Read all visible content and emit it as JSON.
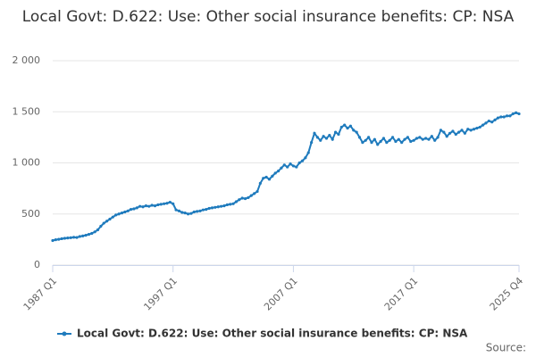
{
  "chart_data": {
    "type": "line",
    "title": "Local Govt: D.622: Use: Other social insurance benefits: CP: NSA",
    "source": "Source:",
    "categories": [
      "1987 Q1",
      null,
      null,
      null,
      null,
      null,
      null,
      null,
      null,
      null,
      null,
      null,
      null,
      null,
      null,
      null,
      null,
      null,
      null,
      null,
      null,
      null,
      null,
      null,
      null,
      null,
      null,
      null,
      null,
      null,
      null,
      null,
      null,
      null,
      null,
      null,
      null,
      null,
      null,
      null,
      "1997 Q1",
      null,
      null,
      null,
      null,
      null,
      null,
      null,
      null,
      null,
      null,
      null,
      null,
      null,
      null,
      null,
      null,
      null,
      null,
      null,
      null,
      null,
      null,
      null,
      null,
      null,
      null,
      null,
      null,
      null,
      null,
      null,
      null,
      null,
      null,
      null,
      null,
      null,
      null,
      null,
      "2007 Q1",
      null,
      null,
      null,
      null,
      null,
      null,
      null,
      null,
      null,
      null,
      null,
      null,
      null,
      null,
      null,
      null,
      null,
      null,
      null,
      null,
      null,
      null,
      null,
      null,
      null,
      null,
      null,
      null,
      null,
      null,
      null,
      null,
      null,
      null,
      null,
      null,
      null,
      null,
      null,
      "2017 Q1",
      null,
      null,
      null,
      null,
      null,
      null,
      null,
      null,
      null,
      null,
      null,
      null,
      null,
      null,
      null,
      null,
      null,
      null,
      null,
      null,
      null,
      null,
      null,
      null,
      null,
      null,
      null,
      null,
      null,
      null,
      null,
      null,
      null,
      null,
      "2025 Q4"
    ],
    "series": [
      {
        "name": "Local Govt: D.622: Use: Other social insurance benefits: CP: NSA",
        "color": "#1f7bbd",
        "values": [
          240,
          248,
          252,
          258,
          262,
          265,
          268,
          272,
          270,
          280,
          285,
          292,
          300,
          310,
          325,
          345,
          380,
          410,
          430,
          450,
          470,
          490,
          500,
          510,
          520,
          530,
          545,
          550,
          560,
          575,
          570,
          580,
          575,
          585,
          580,
          590,
          595,
          600,
          605,
          615,
          600,
          540,
          530,
          515,
          510,
          500,
          505,
          520,
          525,
          530,
          540,
          545,
          555,
          560,
          565,
          570,
          575,
          580,
          590,
          595,
          600,
          620,
          640,
          655,
          650,
          660,
          680,
          700,
          720,
          800,
          850,
          860,
          840,
          870,
          900,
          920,
          950,
          980,
          960,
          990,
          970,
          960,
          1000,
          1020,
          1050,
          1100,
          1200,
          1290,
          1250,
          1220,
          1260,
          1240,
          1270,
          1230,
          1300,
          1280,
          1350,
          1370,
          1340,
          1360,
          1320,
          1300,
          1250,
          1200,
          1220,
          1250,
          1200,
          1230,
          1180,
          1210,
          1240,
          1200,
          1220,
          1250,
          1210,
          1230,
          1200,
          1230,
          1250,
          1210,
          1220,
          1240,
          1250,
          1230,
          1240,
          1230,
          1260,
          1220,
          1250,
          1320,
          1300,
          1260,
          1290,
          1310,
          1280,
          1300,
          1320,
          1290,
          1330,
          1320,
          1330,
          1340,
          1350,
          1370,
          1390,
          1410,
          1400,
          1420,
          1440,
          1450,
          1450,
          1460,
          1460,
          1480,
          1490,
          1480
        ]
      }
    ],
    "ylim": [
      0,
      2000
    ],
    "yticks": [
      0,
      500,
      {
        "value": 1000,
        "label": "1 000"
      },
      {
        "value": 1500,
        "label": "1 500"
      },
      {
        "value": 2000,
        "label": "2 000"
      }
    ],
    "grid": true
  }
}
